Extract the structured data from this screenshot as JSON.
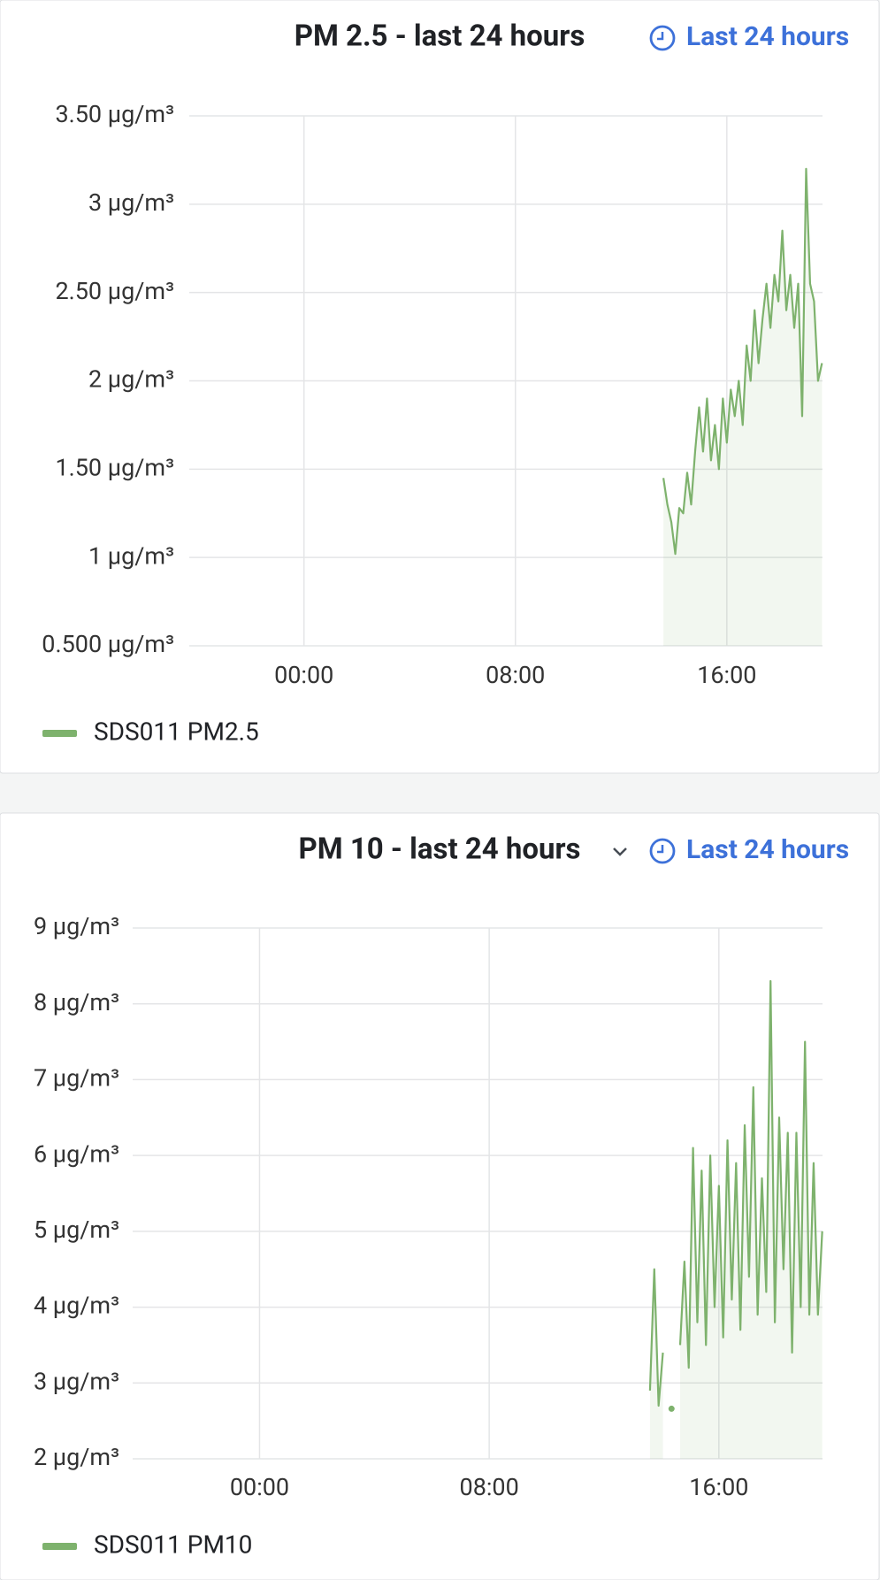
{
  "time_pickers": [
    "Last 24 hours",
    "Last 24 hours"
  ],
  "chart_data": [
    {
      "type": "line",
      "title": "PM 2.5 - last 24 hours",
      "x": [
        13.6,
        13.75,
        13.9,
        14.05,
        14.2,
        14.35,
        14.5,
        14.65,
        14.8,
        14.95,
        15.1,
        15.25,
        15.4,
        15.55,
        15.7,
        15.85,
        16,
        16.15,
        16.3,
        16.45,
        16.6,
        16.75,
        16.9,
        17.05,
        17.2,
        17.35,
        17.5,
        17.65,
        17.8,
        17.95,
        18.1,
        18.25,
        18.4,
        18.55,
        18.7,
        18.85,
        19,
        19.15,
        19.3,
        19.45,
        19.6
      ],
      "series": [
        {
          "name": "SDS011 PM2.5",
          "color": "#7eb26d",
          "values": [
            1.45,
            1.3,
            1.2,
            1.02,
            1.28,
            1.25,
            1.48,
            1.3,
            1.6,
            1.85,
            1.6,
            1.9,
            1.55,
            1.75,
            1.5,
            1.9,
            1.65,
            1.95,
            1.8,
            2.0,
            1.75,
            2.2,
            2.0,
            2.4,
            2.1,
            2.35,
            2.55,
            2.3,
            2.6,
            2.45,
            2.85,
            2.4,
            2.6,
            2.3,
            2.55,
            1.8,
            3.2,
            2.55,
            2.45,
            2.0,
            2.1
          ]
        }
      ],
      "xlim": [
        -4.34,
        19.62
      ],
      "xticks": [
        {
          "value": 0,
          "label": "00:00"
        },
        {
          "value": 8,
          "label": "08:00"
        },
        {
          "value": 16,
          "label": "16:00"
        }
      ],
      "ylim": [
        0.5,
        3.5
      ],
      "yticks": [
        {
          "value": 0.5,
          "label": "0.500 µg/m³"
        },
        {
          "value": 1,
          "label": "1 µg/m³"
        },
        {
          "value": 1.5,
          "label": "1.50 µg/m³"
        },
        {
          "value": 2,
          "label": "2 µg/m³"
        },
        {
          "value": 2.5,
          "label": "2.50 µg/m³"
        },
        {
          "value": 3,
          "label": "3 µg/m³"
        },
        {
          "value": 3.5,
          "label": "3.50 µg/m³"
        }
      ],
      "grid": true
    },
    {
      "type": "line",
      "title": "PM 10 - last 24 hours",
      "x": [
        13.6,
        13.75,
        13.9,
        14.05,
        14.2,
        14.35,
        14.5,
        14.65,
        14.8,
        14.95,
        15.1,
        15.25,
        15.4,
        15.55,
        15.7,
        15.85,
        16,
        16.15,
        16.3,
        16.45,
        16.6,
        16.75,
        16.9,
        17.05,
        17.2,
        17.35,
        17.5,
        17.65,
        17.8,
        17.95,
        18.1,
        18.25,
        18.4,
        18.55,
        18.7,
        18.85,
        19,
        19.15,
        19.3,
        19.45,
        19.6
      ],
      "series": [
        {
          "name": "SDS011 PM10",
          "color": "#7eb26d",
          "values": [
            2.9,
            4.5,
            2.7,
            3.4,
            null,
            2.66,
            null,
            3.5,
            4.6,
            3.2,
            6.1,
            3.8,
            5.8,
            3.5,
            6.0,
            4.0,
            5.6,
            3.6,
            6.2,
            4.1,
            5.9,
            3.7,
            6.4,
            4.4,
            6.9,
            3.9,
            5.7,
            4.2,
            8.3,
            3.8,
            6.5,
            4.5,
            6.3,
            3.4,
            6.3,
            4.0,
            7.5,
            3.9,
            5.9,
            3.9,
            5.0
          ]
        }
      ],
      "xlim": [
        -4.42,
        19.61
      ],
      "xticks": [
        {
          "value": 0,
          "label": "00:00"
        },
        {
          "value": 8,
          "label": "08:00"
        },
        {
          "value": 16,
          "label": "16:00"
        }
      ],
      "ylim": [
        2,
        9
      ],
      "yticks": [
        {
          "value": 2,
          "label": "2 µg/m³"
        },
        {
          "value": 3,
          "label": "3 µg/m³"
        },
        {
          "value": 4,
          "label": "4 µg/m³"
        },
        {
          "value": 5,
          "label": "5 µg/m³"
        },
        {
          "value": 6,
          "label": "6 µg/m³"
        },
        {
          "value": 7,
          "label": "7 µg/m³"
        },
        {
          "value": 8,
          "label": "8 µg/m³"
        },
        {
          "value": 9,
          "label": "9 µg/m³"
        }
      ],
      "grid": true
    }
  ]
}
